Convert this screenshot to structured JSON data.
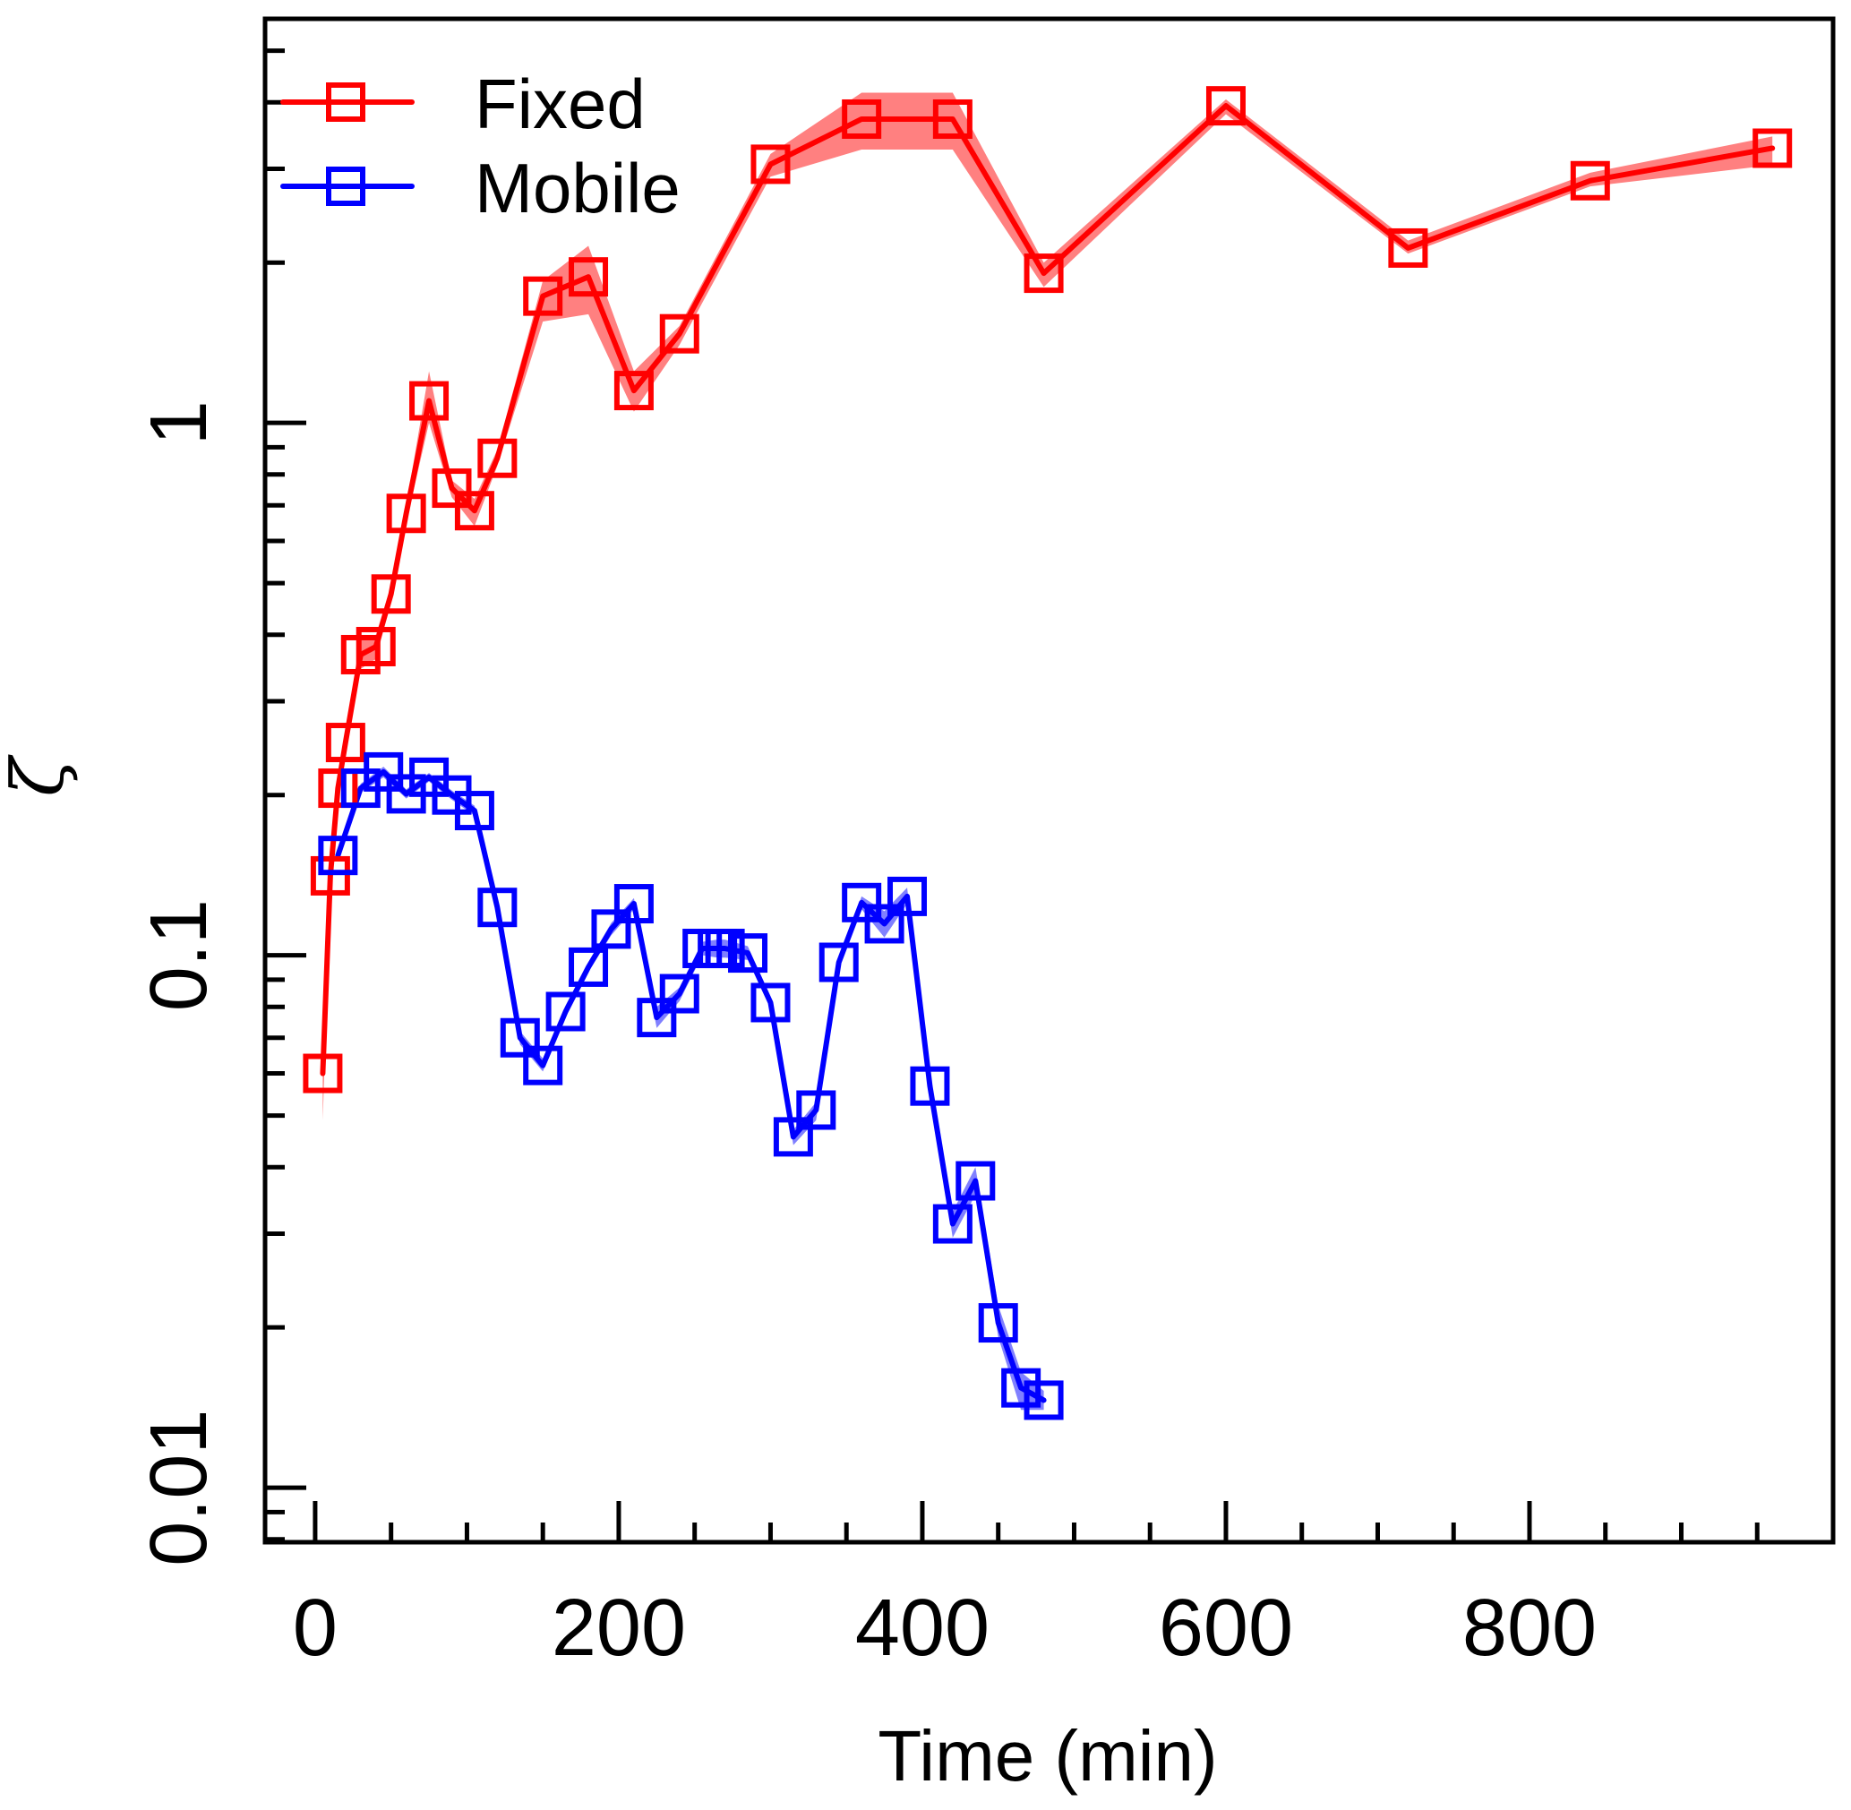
{
  "chart_data": {
    "type": "line",
    "title": "",
    "xlabel": "Time (min)",
    "ylabel": "ζ",
    "xscale": "linear",
    "yscale": "log",
    "xlim": [
      -33,
      1000
    ],
    "ylim": [
      0.0079,
      5.74
    ],
    "grid": false,
    "legend_position": "top-left",
    "x_ticks": [
      0,
      200,
      400,
      600,
      800
    ],
    "x_tick_labels": [
      "0",
      "200",
      "400",
      "600",
      "800"
    ],
    "x_minor_tick_step": 50,
    "y_ticks": [
      0.01,
      0.1,
      1
    ],
    "y_tick_labels": [
      "0.01",
      "0.1",
      "1"
    ],
    "marker": "open-square",
    "series": [
      {
        "name": "Fixed",
        "color": "#ff0000",
        "band_color": "#ff8080",
        "x": [
          5,
          10,
          15,
          20,
          30,
          40,
          50,
          60,
          75,
          90,
          105,
          120,
          150,
          180,
          210,
          240,
          300,
          360,
          420,
          480,
          600,
          720,
          840,
          960
        ],
        "y": [
          0.06,
          0.141,
          0.206,
          0.251,
          0.367,
          0.38,
          0.477,
          0.676,
          1.1,
          0.754,
          0.684,
          0.858,
          1.73,
          1.88,
          1.15,
          1.47,
          3.06,
          3.72,
          3.72,
          1.91,
          3.94,
          2.13,
          2.85,
          3.28
        ],
        "lower": [
          0.049,
          0.136,
          0.2,
          0.24,
          0.345,
          0.36,
          0.46,
          0.65,
          1.0,
          0.725,
          0.64,
          0.83,
          1.55,
          1.6,
          1.05,
          1.4,
          2.9,
          3.26,
          3.26,
          1.8,
          3.8,
          2.08,
          2.78,
          3.05
        ],
        "upper": [
          0.066,
          0.146,
          0.212,
          0.262,
          0.39,
          0.4,
          0.495,
          0.7,
          1.25,
          0.78,
          0.72,
          0.89,
          1.85,
          2.15,
          1.25,
          1.52,
          3.2,
          4.17,
          4.17,
          2.0,
          4.05,
          2.2,
          2.95,
          3.45
        ]
      },
      {
        "name": "Mobile",
        "color": "#0000ff",
        "band_color": "#8080ff",
        "x": [
          15,
          30,
          45,
          60,
          75,
          90,
          105,
          120,
          135,
          150,
          165,
          180,
          195,
          210,
          225,
          240,
          255,
          265,
          270,
          285,
          300,
          315,
          330,
          345,
          360,
          375,
          390,
          405,
          420,
          435,
          450,
          465,
          480
        ],
        "y": [
          0.154,
          0.206,
          0.221,
          0.201,
          0.216,
          0.2,
          0.187,
          0.123,
          0.07,
          0.0621,
          0.0784,
          0.095,
          0.112,
          0.125,
          0.0764,
          0.0847,
          0.103,
          0.103,
          0.103,
          0.101,
          0.0815,
          0.0456,
          0.0512,
          0.097,
          0.1256,
          0.1146,
          0.129,
          0.0568,
          0.0313,
          0.0377,
          0.0204,
          0.0154,
          0.0146
        ],
        "lower": [
          0.15,
          0.202,
          0.216,
          0.197,
          0.212,
          0.196,
          0.183,
          0.12,
          0.068,
          0.0605,
          0.0765,
          0.093,
          0.109,
          0.122,
          0.073,
          0.082,
          0.1,
          0.099,
          0.099,
          0.098,
          0.0795,
          0.044,
          0.049,
          0.095,
          0.122,
          0.108,
          0.125,
          0.0555,
          0.0295,
          0.0355,
          0.0192,
          0.014,
          0.014
        ],
        "upper": [
          0.158,
          0.21,
          0.226,
          0.205,
          0.22,
          0.204,
          0.191,
          0.126,
          0.072,
          0.064,
          0.0805,
          0.097,
          0.115,
          0.128,
          0.08,
          0.087,
          0.106,
          0.107,
          0.107,
          0.104,
          0.0835,
          0.047,
          0.053,
          0.099,
          0.129,
          0.121,
          0.134,
          0.058,
          0.033,
          0.04,
          0.022,
          0.0165,
          0.0152
        ]
      }
    ]
  },
  "legend": {
    "items": [
      {
        "label": "Fixed",
        "color": "#ff0000"
      },
      {
        "label": "Mobile",
        "color": "#0000ff"
      }
    ]
  }
}
